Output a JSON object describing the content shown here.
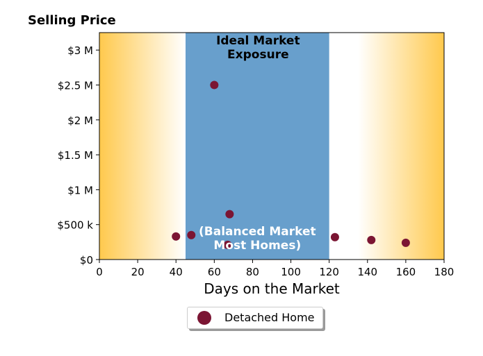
{
  "chart_data": {
    "type": "scatter",
    "title": "Selling Price",
    "xlabel": "Days on the Market",
    "ylabel": "",
    "xlim": [
      0,
      180
    ],
    "ylim": [
      0,
      3250000
    ],
    "grid": false,
    "legend_placement": "bottom-center",
    "x_ticks": [
      0,
      20,
      40,
      60,
      80,
      100,
      120,
      140,
      160,
      180
    ],
    "y_ticks": [
      {
        "value": 0,
        "label": "$0"
      },
      {
        "value": 500000,
        "label": "$500 k"
      },
      {
        "value": 1000000,
        "label": "$1 M"
      },
      {
        "value": 1500000,
        "label": "$1.5 M"
      },
      {
        "value": 2000000,
        "label": "$2 M"
      },
      {
        "value": 2500000,
        "label": "$2.5 M"
      },
      {
        "value": 3000000,
        "label": "$3 M"
      }
    ],
    "regions": [
      {
        "x_start": 45,
        "x_end": 120,
        "color": "#689fcc",
        "label_top": [
          "Ideal Market",
          "Exposure"
        ],
        "label_bottom": [
          "(Balanced Market",
          "Most Homes)"
        ]
      }
    ],
    "background_gradient": {
      "edge_color": "#ffc94d",
      "center_color": "#ffffff"
    },
    "series": [
      {
        "name": "Detached Home",
        "color": "#7b1533",
        "points": [
          {
            "x": 40,
            "y": 330000
          },
          {
            "x": 48,
            "y": 350000
          },
          {
            "x": 60,
            "y": 2500000
          },
          {
            "x": 67,
            "y": 210000
          },
          {
            "x": 68,
            "y": 650000
          },
          {
            "x": 123,
            "y": 320000
          },
          {
            "x": 142,
            "y": 280000
          },
          {
            "x": 160,
            "y": 240000
          }
        ]
      }
    ]
  }
}
